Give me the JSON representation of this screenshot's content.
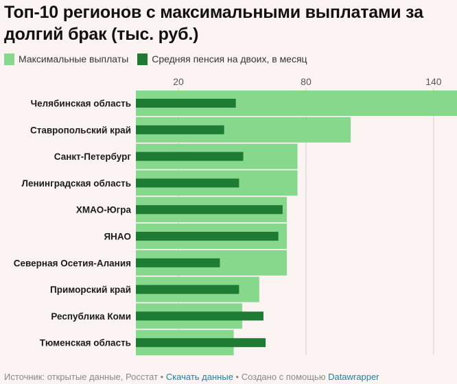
{
  "title": "Топ-10 регионов с максимальными выплатами за долгий брак (тыс. руб.)",
  "colors": {
    "max": "#85d88c",
    "avg": "#1e7b33",
    "grid": "#d0d0d0",
    "background": "#fcf4f3"
  },
  "footer": {
    "source": "Источник: открытые данные, Росстат",
    "sep1": " • ",
    "download": "Скачать данные",
    "sep2": " • ",
    "created": "Создано с помощью ",
    "tool": "Datawrapper"
  },
  "chart_data": {
    "type": "bar",
    "orientation": "horizontal",
    "categories": [
      "Челябинская область",
      "Ставропольский край",
      "Санкт-Петербург",
      "Ленинградская область",
      "ХМАО-Югра",
      "ЯНАО",
      "Северная Осетия-Алания",
      "Приморский край",
      "Республика Коми",
      "Тюменская область"
    ],
    "series": [
      {
        "name": "Максимальные выплаты",
        "values": [
          151,
          101,
          76,
          76,
          71,
          71,
          71,
          58,
          50,
          46
        ]
      },
      {
        "name": "Средняя пенсия на двоих, в месяц",
        "values": [
          47,
          41.5,
          50.5,
          48.5,
          69,
          67,
          39.5,
          48.5,
          60,
          61
        ]
      }
    ],
    "xticks": [
      20,
      80,
      140
    ],
    "xlim": [
      0,
      151
    ],
    "grid": true,
    "legend_position": "top-left"
  }
}
